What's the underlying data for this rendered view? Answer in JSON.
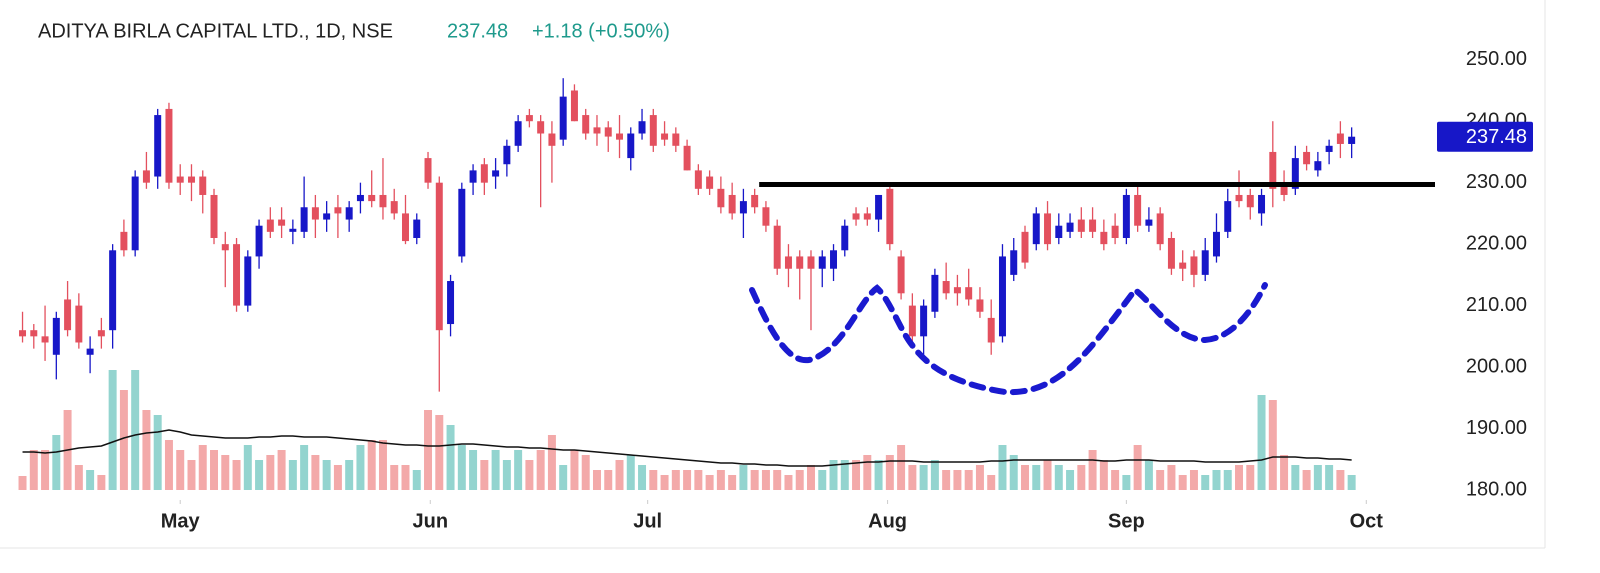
{
  "chart_data": {
    "type": "candlestick",
    "title": "ADITYA BIRLA CAPITAL LTD., 1D, NSE",
    "change_label": "+1.18 (+0.50%)",
    "up_color": "#1717c8",
    "down_color": "#e3505e",
    "volume_up_color": "#93d4cf",
    "volume_down_color": "#f3a9a9",
    "volume_ma_color": "#111111",
    "xlim": [
      -2,
      125.4
    ],
    "xticks": [
      {
        "value": 14,
        "label": "May"
      },
      {
        "value": 36.2,
        "label": "Jun"
      },
      {
        "value": 55.5,
        "label": "Jul"
      },
      {
        "value": 76.8,
        "label": "Aug"
      },
      {
        "value": 98,
        "label": "Sep"
      },
      {
        "value": 119.3,
        "label": "Oct"
      }
    ],
    "ylim": [
      180,
      252.4
    ],
    "yticks": [
      {
        "value": 180,
        "label": "180.00"
      },
      {
        "value": 190,
        "label": "190.00"
      },
      {
        "value": 200,
        "label": "200.00"
      },
      {
        "value": 210,
        "label": "210.00"
      },
      {
        "value": 220,
        "label": "220.00"
      },
      {
        "value": 230,
        "label": "230.00"
      },
      {
        "value": 240,
        "label": "240.00"
      },
      {
        "value": 250,
        "label": "250.00"
      }
    ],
    "volume_lim": [
      0,
      120
    ],
    "resistance": {
      "value": 229.7,
      "x_start": 65.4
    },
    "open": [
      206,
      206,
      205,
      202,
      211,
      210,
      202,
      206,
      206,
      222,
      219,
      232,
      231,
      242,
      231,
      231,
      231,
      228,
      220,
      220,
      210,
      218,
      224,
      224,
      222,
      222,
      226,
      224,
      226,
      224,
      227,
      228,
      228,
      227,
      225,
      221,
      234,
      230,
      207,
      218,
      230,
      233,
      231,
      233,
      236,
      241,
      240,
      238,
      237,
      245,
      241,
      239,
      239,
      238,
      234,
      238,
      241,
      238,
      238,
      236,
      232,
      231,
      229,
      228,
      225,
      228,
      226,
      223,
      218,
      218,
      218,
      216,
      216,
      219,
      225,
      225,
      224,
      229,
      218,
      210,
      205,
      209,
      214,
      213,
      213,
      211,
      208,
      205,
      215,
      222,
      220,
      225,
      221,
      222,
      224,
      224,
      222,
      223,
      221,
      228,
      223,
      225,
      221,
      217,
      218,
      215,
      218,
      222,
      228,
      228,
      225,
      235,
      230,
      229,
      235,
      232,
      235,
      238,
      236.3
    ],
    "high": [
      209,
      207,
      210,
      209,
      214,
      212,
      205,
      208,
      220,
      224,
      232,
      235,
      242,
      243,
      233,
      233,
      232,
      229,
      222,
      221,
      219,
      224,
      226,
      226,
      224,
      231,
      228,
      227,
      228,
      227,
      230,
      232,
      234,
      229,
      228,
      225,
      235,
      231,
      215,
      230,
      233,
      234,
      234,
      237,
      241,
      242,
      241,
      240,
      247,
      246,
      242,
      241,
      240,
      241,
      239,
      242,
      242,
      240,
      239,
      237,
      233,
      232,
      231,
      230,
      229,
      229,
      227,
      224,
      220,
      219,
      219,
      219,
      220,
      224,
      226,
      226,
      228,
      230,
      219,
      212,
      211,
      216,
      217,
      215,
      216,
      213,
      211,
      220,
      221,
      223,
      226,
      227,
      225,
      225,
      226,
      226,
      224,
      225,
      229,
      230,
      226,
      226,
      222,
      219,
      219,
      221,
      225,
      229,
      232,
      229,
      229,
      240,
      232,
      236,
      236,
      235,
      237,
      240,
      239
    ],
    "low": [
      204,
      203,
      201,
      198,
      205,
      203,
      199,
      203,
      203,
      218,
      218,
      229,
      229,
      229,
      228,
      227,
      225,
      220,
      213,
      209,
      209,
      216,
      221,
      221,
      220,
      221,
      221,
      222,
      221,
      222,
      225,
      226,
      224,
      224,
      220,
      220,
      229,
      196,
      205,
      217,
      228,
      228,
      229,
      231,
      235,
      239,
      226,
      230,
      236,
      240,
      237,
      236,
      235,
      234,
      232,
      237,
      235,
      236,
      235,
      232,
      228,
      228,
      225,
      224,
      221,
      225,
      222,
      215,
      213,
      211,
      206,
      213,
      214,
      218,
      223,
      223,
      222,
      219,
      211,
      203,
      202,
      208,
      211,
      210,
      210,
      208,
      202,
      204,
      214,
      216,
      219,
      219,
      220,
      221,
      221,
      221,
      219,
      220,
      220,
      222,
      222,
      219,
      215,
      214,
      213,
      214,
      217,
      221,
      226,
      224,
      223,
      226,
      227,
      228,
      232,
      231,
      233,
      234,
      234
    ],
    "close": [
      205,
      205,
      204,
      208,
      206,
      204,
      203,
      205,
      219,
      219,
      231,
      230,
      241,
      230,
      230,
      230,
      228,
      221,
      219,
      210,
      218,
      223,
      222,
      223,
      222.5,
      226,
      224,
      225,
      225,
      226,
      228,
      227,
      226,
      225,
      220.5,
      224,
      230,
      206,
      214,
      229,
      232,
      230,
      232,
      236,
      240,
      240,
      238,
      236,
      244,
      240,
      238,
      238,
      237.5,
      237,
      238,
      240,
      236,
      237,
      236,
      232,
      229,
      229,
      226,
      225,
      227,
      226,
      223,
      216,
      216,
      216,
      216,
      218,
      219,
      223,
      224,
      224,
      228,
      220,
      212,
      205,
      210,
      215,
      212,
      212,
      211,
      209,
      204,
      218,
      219,
      217,
      225,
      220,
      223,
      223.5,
      222,
      222,
      220,
      221,
      228,
      223,
      224,
      220,
      216,
      216,
      215,
      219,
      222,
      227,
      227,
      226,
      228,
      229,
      228,
      234,
      233,
      233.5,
      236,
      236.3,
      237.48
    ],
    "volume": [
      14,
      40,
      40,
      55,
      80,
      25,
      20,
      15,
      120,
      100,
      120,
      80,
      75,
      50,
      40,
      30,
      45,
      40,
      35,
      30,
      45,
      30,
      35,
      40,
      30,
      45,
      35,
      30,
      25,
      30,
      45,
      50,
      50,
      25,
      25,
      20,
      80,
      75,
      65,
      45,
      40,
      30,
      40,
      30,
      40,
      30,
      40,
      55,
      25,
      40,
      35,
      20,
      20,
      30,
      35,
      25,
      20,
      15,
      20,
      20,
      20,
      15,
      20,
      15,
      25,
      20,
      20,
      20,
      15,
      20,
      25,
      20,
      30,
      30,
      30,
      35,
      30,
      35,
      45,
      25,
      25,
      30,
      20,
      20,
      20,
      25,
      15,
      45,
      35,
      25,
      25,
      30,
      25,
      20,
      25,
      40,
      30,
      20,
      15,
      45,
      30,
      20,
      25,
      15,
      20,
      15,
      20,
      20,
      25,
      25,
      95,
      90,
      35,
      25,
      20,
      25,
      25,
      20,
      15
    ],
    "volume_ma": [
      38,
      38,
      37,
      38,
      40,
      42,
      43,
      44,
      48,
      52,
      55,
      57,
      58,
      60,
      58,
      55,
      54,
      53,
      52,
      52,
      52,
      53,
      53,
      54,
      54,
      53,
      53,
      53,
      52,
      51,
      50,
      49,
      47,
      46,
      45,
      45,
      44,
      44,
      45,
      46,
      46,
      45,
      44,
      43,
      43,
      42,
      42,
      41,
      40,
      40,
      39,
      38,
      37,
      36,
      35,
      34,
      33,
      32,
      31,
      30,
      29,
      28,
      27,
      27,
      26,
      26,
      25,
      25,
      24,
      24,
      24,
      24,
      25,
      26,
      27,
      28,
      28,
      29,
      29,
      29,
      28,
      28,
      28,
      28,
      28,
      28,
      29,
      29,
      30,
      30,
      30,
      30,
      30,
      30,
      30,
      30,
      29,
      29,
      30,
      30,
      30,
      29,
      29,
      29,
      29,
      28,
      28,
      28,
      28,
      29,
      30,
      33,
      33,
      33,
      32,
      32,
      31,
      31,
      30
    ]
  }
}
